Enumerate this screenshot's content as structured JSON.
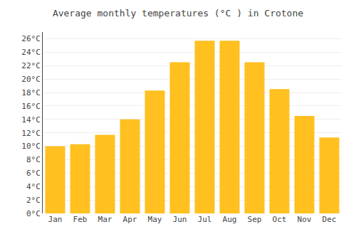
{
  "chart_data": {
    "type": "bar",
    "title": "Average monthly temperatures (°C ) in Crotone",
    "categories": [
      "Jan",
      "Feb",
      "Mar",
      "Apr",
      "May",
      "Jun",
      "Jul",
      "Aug",
      "Sep",
      "Oct",
      "Nov",
      "Dec"
    ],
    "values": [
      10.0,
      10.3,
      11.7,
      14.0,
      18.3,
      22.5,
      25.7,
      25.7,
      22.5,
      18.5,
      14.5,
      11.3
    ],
    "color": "#FFC020",
    "ylim": [
      0,
      27
    ],
    "yticks": [
      {
        "value": 0,
        "label": "0°C"
      },
      {
        "value": 2,
        "label": "2°C"
      },
      {
        "value": 4,
        "label": "4°C"
      },
      {
        "value": 6,
        "label": "6°C"
      },
      {
        "value": 8,
        "label": "8°C"
      },
      {
        "value": 10,
        "label": "10°C"
      },
      {
        "value": 12,
        "label": "12°C"
      },
      {
        "value": 14,
        "label": "14°C"
      },
      {
        "value": 16,
        "label": "16°C"
      },
      {
        "value": 18,
        "label": "18°C"
      },
      {
        "value": 20,
        "label": "20°C"
      },
      {
        "value": 22,
        "label": "22°C"
      },
      {
        "value": 24,
        "label": "24°C"
      },
      {
        "value": 26,
        "label": "26°C"
      }
    ],
    "grid": true
  }
}
